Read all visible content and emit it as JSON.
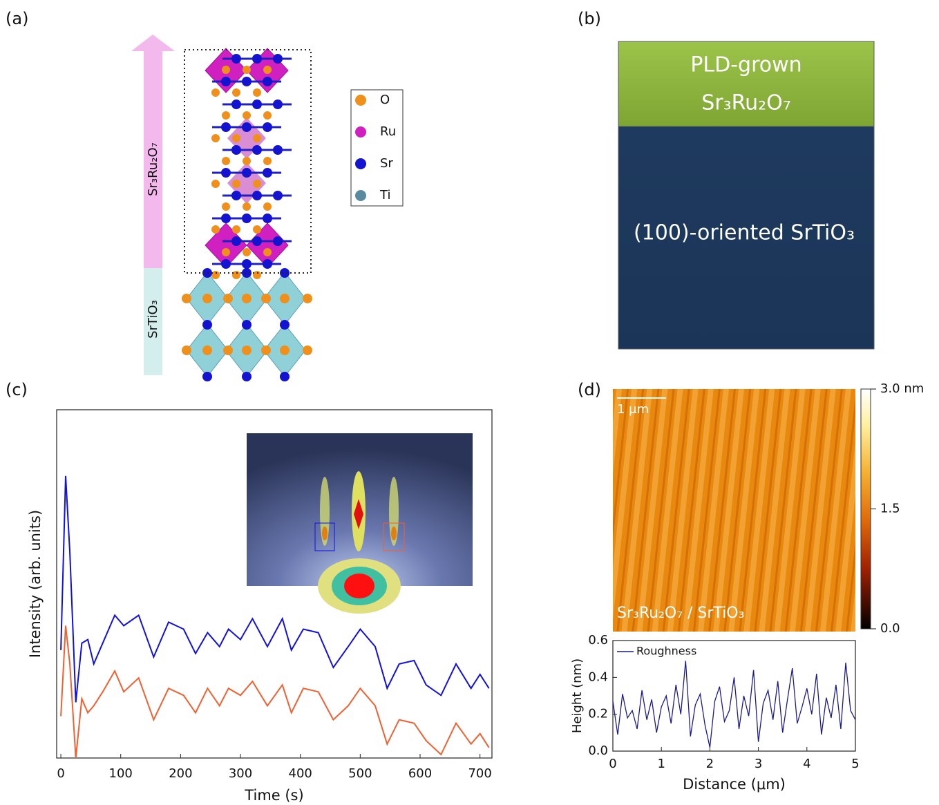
{
  "panel_labels": [
    "(a)",
    "(b)",
    "(c)",
    "(d)"
  ],
  "panel_a": {
    "arrow_film": "Sr₃Ru₂O₇",
    "arrow_substrate": "SrTiO₃",
    "legend": [
      {
        "name": "O",
        "color": "#f0901c"
      },
      {
        "name": "Ru",
        "color": "#d020c0"
      },
      {
        "name": "Sr",
        "color": "#1414d0"
      },
      {
        "name": "Ti",
        "color": "#5a8aa0"
      }
    ]
  },
  "panel_b": {
    "film_line1": "PLD-grown",
    "film_line2": "Sr₃Ru₂O₇",
    "substrate": "(100)-oriented SrTiO₃"
  },
  "panel_d": {
    "scale_bar": "1 μm",
    "sample_label": "Sr₃Ru₂O₇ / SrTiO₃",
    "colorbar": {
      "ylim": [
        0,
        3
      ],
      "yticks": [
        {
          "value": 3,
          "label": "3.0 nm"
        },
        {
          "value": 1.5,
          "label": "1.5"
        },
        {
          "value": 0,
          "label": "0.0"
        }
      ]
    }
  },
  "chart_data": [
    {
      "type": "line",
      "xlabel": "Time (s)",
      "ylabel": "Intensity (arb. units)",
      "xlim": [
        -7,
        720
      ],
      "ylim": [
        0,
        100
      ],
      "xticks": [
        0,
        100,
        200,
        300,
        400,
        500,
        600,
        700
      ],
      "x": [
        0,
        8,
        15,
        25,
        35,
        45,
        55,
        70,
        90,
        105,
        130,
        155,
        180,
        205,
        225,
        245,
        265,
        280,
        300,
        320,
        345,
        370,
        385,
        405,
        430,
        455,
        480,
        500,
        525,
        545,
        565,
        590,
        610,
        635,
        660,
        685,
        700,
        715
      ],
      "series": [
        {
          "color": "#1010e0",
          "values": [
            31,
            81,
            59,
            16,
            33,
            34,
            27,
            33,
            41,
            38,
            41,
            29,
            39,
            37,
            30,
            36,
            32,
            37,
            34,
            40,
            32,
            40,
            31,
            37,
            36,
            26,
            32,
            37,
            32,
            20,
            27,
            28,
            21,
            18,
            27,
            20,
            24,
            20
          ]
        },
        {
          "color": "#f06030",
          "values": [
            12,
            38,
            27,
            0,
            17,
            13,
            15,
            19,
            25,
            19,
            23,
            11,
            20,
            18,
            13,
            20,
            15,
            20,
            18,
            22,
            15,
            21,
            13,
            20,
            19,
            11,
            15,
            20,
            15,
            4,
            11,
            10,
            5,
            1,
            10,
            4,
            7,
            3
          ]
        }
      ]
    },
    {
      "type": "line",
      "xlabel": "Distance (μm)",
      "ylabel": "Height (nm)",
      "xlim": [
        0,
        5
      ],
      "ylim": [
        0,
        0.6
      ],
      "xticks": [
        0,
        1,
        2,
        3,
        4,
        5
      ],
      "yticks": [
        {
          "value": 0,
          "label": "0.0"
        },
        {
          "value": 0.2,
          "label": "0.2"
        },
        {
          "value": 0.4,
          "label": "0.4"
        },
        {
          "value": 0.6,
          "label": "0.6"
        }
      ],
      "legend": "upper left",
      "x": [
        0,
        0.1,
        0.2,
        0.3,
        0.4,
        0.5,
        0.6,
        0.7,
        0.8,
        0.9,
        1,
        1.1,
        1.2,
        1.3,
        1.4,
        1.5,
        1.6,
        1.7,
        1.8,
        1.9,
        2,
        2.1,
        2.2,
        2.3,
        2.4,
        2.5,
        2.6,
        2.7,
        2.8,
        2.9,
        3,
        3.1,
        3.2,
        3.3,
        3.4,
        3.5,
        3.6,
        3.7,
        3.8,
        3.9,
        4,
        4.1,
        4.2,
        4.3,
        4.4,
        4.5,
        4.6,
        4.7,
        4.8,
        4.9,
        5
      ],
      "series": [
        {
          "name": "Roughness",
          "color": "#1a1a8c",
          "values": [
            0.27,
            0.09,
            0.31,
            0.18,
            0.22,
            0.12,
            0.33,
            0.17,
            0.28,
            0.1,
            0.24,
            0.3,
            0.15,
            0.36,
            0.2,
            0.49,
            0.08,
            0.25,
            0.31,
            0.14,
            0.02,
            0.27,
            0.35,
            0.16,
            0.22,
            0.4,
            0.12,
            0.3,
            0.19,
            0.44,
            0.05,
            0.26,
            0.33,
            0.17,
            0.38,
            0.1,
            0.28,
            0.45,
            0.15,
            0.24,
            0.34,
            0.2,
            0.42,
            0.09,
            0.29,
            0.18,
            0.36,
            0.12,
            0.48,
            0.22,
            0.17
          ]
        }
      ]
    }
  ]
}
